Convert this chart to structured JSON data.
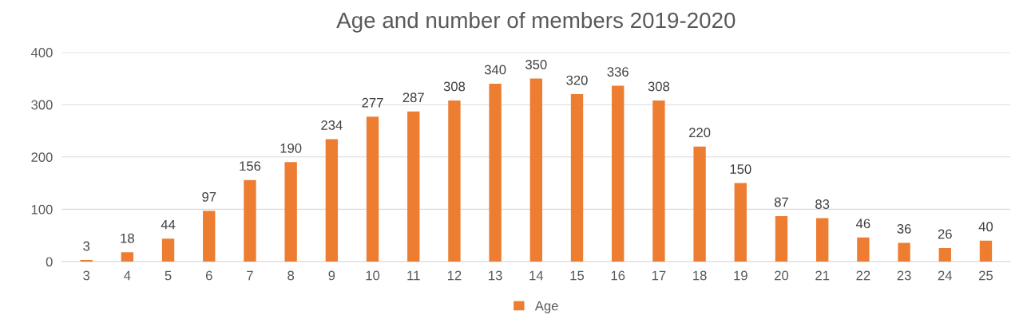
{
  "chart_data": {
    "type": "bar",
    "title": "Age and number of members 2019-2020",
    "categories": [
      "3",
      "4",
      "5",
      "6",
      "7",
      "8",
      "9",
      "10",
      "11",
      "12",
      "13",
      "14",
      "15",
      "16",
      "17",
      "18",
      "19",
      "20",
      "21",
      "22",
      "23",
      "24",
      "25"
    ],
    "series": [
      {
        "name": "Age",
        "color": "#ed7d31",
        "values": [
          3,
          18,
          44,
          97,
          156,
          190,
          234,
          277,
          287,
          308,
          340,
          350,
          320,
          336,
          308,
          220,
          150,
          87,
          83,
          46,
          36,
          26,
          40
        ]
      }
    ],
    "ylim": [
      0,
      400
    ],
    "yticks": [
      0,
      100,
      200,
      300,
      400
    ],
    "grid": "y",
    "legend": "bottom",
    "data_labels": true
  }
}
